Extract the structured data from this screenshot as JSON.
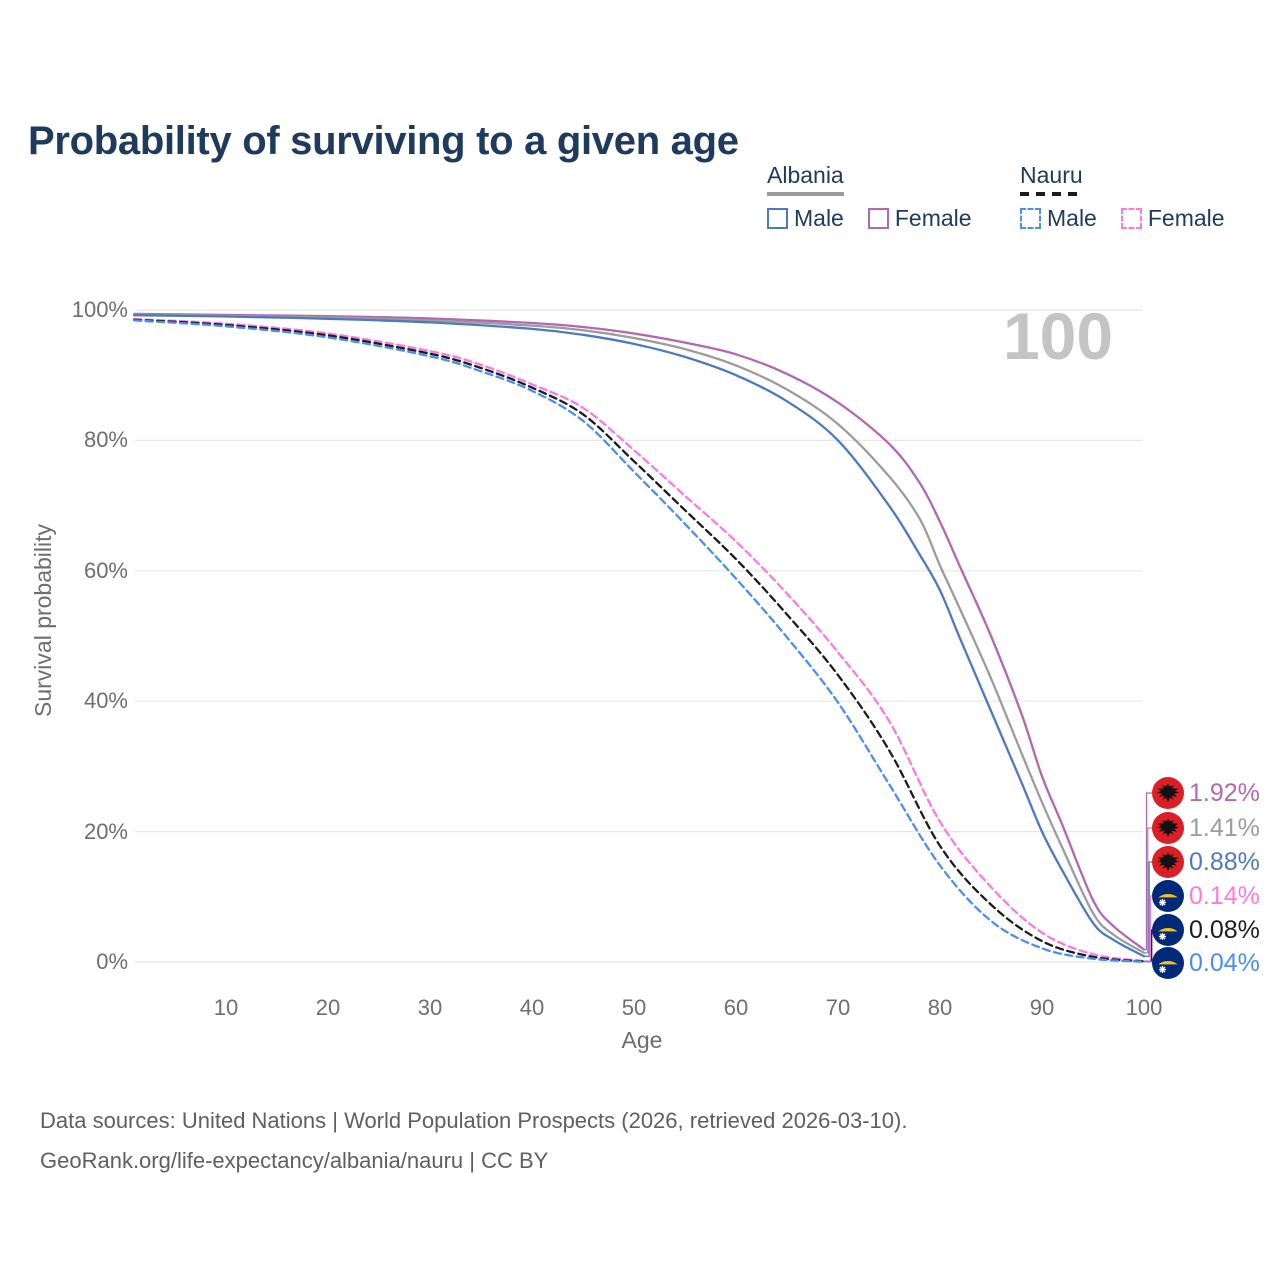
{
  "title": "Probability of surviving to a given age",
  "hover_age_indicator": "100",
  "legend": {
    "groups": [
      {
        "country": "Albania",
        "line_style": "solid",
        "underline_color": "#9c9c9c",
        "items": [
          {
            "label": "Male",
            "color": "#4d79c0"
          },
          {
            "label": "Female",
            "color": "#b168b1"
          }
        ]
      },
      {
        "country": "Nauru",
        "line_style": "dashed",
        "underline_color": "#1c1c1c",
        "items": [
          {
            "label": "Male",
            "color": "#4a8ef5"
          },
          {
            "label": "Female",
            "color": "#fc7ae0"
          }
        ]
      }
    ]
  },
  "chart_data": {
    "type": "line",
    "title": "Probability of surviving to a given age",
    "xlabel": "Age",
    "ylabel": "Survival probability",
    "xlim": [
      1,
      100
    ],
    "ylim": [
      0,
      100
    ],
    "grid": true,
    "x_ticks": [
      10,
      20,
      30,
      40,
      50,
      60,
      70,
      80,
      90,
      100
    ],
    "y_ticks": [
      {
        "value": 100,
        "label": "100%"
      },
      {
        "value": 80,
        "label": "80%"
      },
      {
        "value": 60,
        "label": "60%"
      },
      {
        "value": 40,
        "label": "40%"
      },
      {
        "value": 20,
        "label": "20%"
      },
      {
        "value": 0,
        "label": "0%"
      }
    ],
    "series": [
      {
        "name": "Albania Female",
        "color": "#b168b1",
        "dash": "solid",
        "end_label": "1.92%",
        "flag": "albania",
        "points": [
          [
            1,
            99.4
          ],
          [
            10,
            99.25
          ],
          [
            20,
            99.05
          ],
          [
            30,
            98.7
          ],
          [
            40,
            98.0
          ],
          [
            45,
            97.4
          ],
          [
            50,
            96.4
          ],
          [
            55,
            95.0
          ],
          [
            60,
            93.2
          ],
          [
            65,
            90.2
          ],
          [
            70,
            85.8
          ],
          [
            75,
            79.5
          ],
          [
            78,
            73.5
          ],
          [
            80,
            67.5
          ],
          [
            82,
            60.5
          ],
          [
            85,
            50
          ],
          [
            88,
            38
          ],
          [
            90,
            28.5
          ],
          [
            92,
            21
          ],
          [
            95,
            9.5
          ],
          [
            97,
            5.5
          ],
          [
            100,
            1.92
          ]
        ]
      },
      {
        "name": "Albania",
        "color": "#9c9c9c",
        "dash": "solid",
        "end_label": "1.41%",
        "flag": "albania",
        "points": [
          [
            1,
            99.3
          ],
          [
            10,
            99.1
          ],
          [
            20,
            98.85
          ],
          [
            30,
            98.4
          ],
          [
            40,
            97.6
          ],
          [
            45,
            96.9
          ],
          [
            50,
            95.7
          ],
          [
            55,
            94.0
          ],
          [
            60,
            91.5
          ],
          [
            65,
            87.8
          ],
          [
            70,
            82.5
          ],
          [
            75,
            74.5
          ],
          [
            78,
            68
          ],
          [
            80,
            60.8
          ],
          [
            82,
            54
          ],
          [
            85,
            43.5
          ],
          [
            88,
            32
          ],
          [
            90,
            24.5
          ],
          [
            92,
            17.5
          ],
          [
            95,
            7.5
          ],
          [
            97,
            4.2
          ],
          [
            100,
            1.41
          ]
        ]
      },
      {
        "name": "Albania Male",
        "color": "#4d79c0",
        "dash": "solid",
        "end_label": "0.88%",
        "flag": "albania",
        "points": [
          [
            1,
            99.2
          ],
          [
            10,
            99.0
          ],
          [
            20,
            98.65
          ],
          [
            30,
            98.1
          ],
          [
            40,
            97.1
          ],
          [
            45,
            96.2
          ],
          [
            50,
            94.8
          ],
          [
            55,
            92.8
          ],
          [
            60,
            90.0
          ],
          [
            65,
            86.0
          ],
          [
            70,
            80.0
          ],
          [
            75,
            70.0
          ],
          [
            78,
            62.5
          ],
          [
            80,
            57.0
          ],
          [
            82,
            49.5
          ],
          [
            85,
            38.5
          ],
          [
            88,
            27.5
          ],
          [
            90,
            20.0
          ],
          [
            92,
            14
          ],
          [
            95,
            6.0
          ],
          [
            97,
            3.4
          ],
          [
            100,
            0.88
          ]
        ]
      },
      {
        "name": "Nauru Female",
        "color": "#fc7ae0",
        "dash": "dashed",
        "end_label": "0.14%",
        "flag": "nauru",
        "points": [
          [
            1,
            98.6
          ],
          [
            10,
            97.9
          ],
          [
            20,
            96.4
          ],
          [
            30,
            93.7
          ],
          [
            35,
            91.6
          ],
          [
            40,
            88.6
          ],
          [
            45,
            85.0
          ],
          [
            50,
            78.5
          ],
          [
            55,
            71.5
          ],
          [
            60,
            64.5
          ],
          [
            65,
            56.5
          ],
          [
            70,
            47.5
          ],
          [
            75,
            37.0
          ],
          [
            80,
            21.5
          ],
          [
            85,
            11.5
          ],
          [
            90,
            4.5
          ],
          [
            95,
            1.2
          ],
          [
            100,
            0.14
          ]
        ]
      },
      {
        "name": "Nauru",
        "color": "#1c1c1c",
        "dash": "dashed",
        "end_label": "0.08%",
        "flag": "nauru",
        "points": [
          [
            1,
            98.5
          ],
          [
            10,
            97.7
          ],
          [
            20,
            96.1
          ],
          [
            30,
            93.3
          ],
          [
            35,
            91.1
          ],
          [
            40,
            88.1
          ],
          [
            45,
            84.0
          ],
          [
            50,
            76.8
          ],
          [
            55,
            69.3
          ],
          [
            60,
            61.8
          ],
          [
            65,
            53.3
          ],
          [
            70,
            44.0
          ],
          [
            75,
            32.5
          ],
          [
            80,
            17.8
          ],
          [
            85,
            8.8
          ],
          [
            90,
            3.2
          ],
          [
            95,
            0.8
          ],
          [
            100,
            0.08
          ]
        ]
      },
      {
        "name": "Nauru Male",
        "color": "#4a8ef5",
        "dash": "dashed",
        "end_label": "0.04%",
        "flag": "nauru",
        "points": [
          [
            1,
            98.4
          ],
          [
            10,
            97.5
          ],
          [
            20,
            95.8
          ],
          [
            30,
            92.9
          ],
          [
            35,
            90.6
          ],
          [
            40,
            87.6
          ],
          [
            45,
            83.0
          ],
          [
            50,
            75.2
          ],
          [
            55,
            67.2
          ],
          [
            60,
            58.8
          ],
          [
            65,
            49.8
          ],
          [
            70,
            39.8
          ],
          [
            75,
            27.3
          ],
          [
            80,
            14.8
          ],
          [
            85,
            6.3
          ],
          [
            90,
            2.1
          ],
          [
            95,
            0.5
          ],
          [
            100,
            0.04
          ]
        ]
      }
    ]
  },
  "flags": {
    "albania": {
      "background": "#dc1f26",
      "emblem": "#121212"
    },
    "nauru": {
      "background": "#00297a",
      "stripe": "#f3c218",
      "star": "#ffffff"
    }
  },
  "footer": {
    "line1": "Data sources: United Nations | World Population Prospects (2026, retrieved 2026-03-10).",
    "line2": "GeoRank.org/life-expectancy/albania/nauru | CC BY"
  }
}
